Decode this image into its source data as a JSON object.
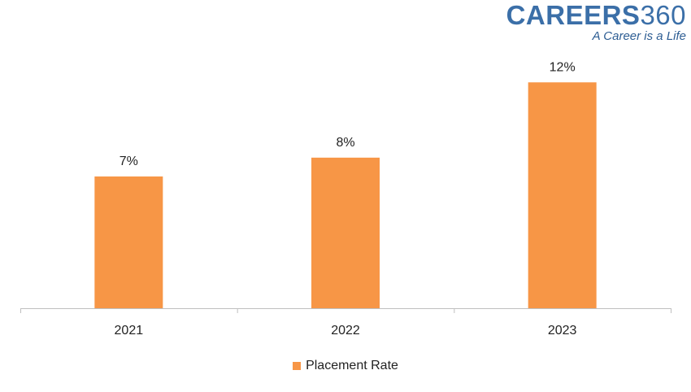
{
  "brand": {
    "name_bold": "CAREERS",
    "name_number": "360",
    "tagline": "A Career is a Life"
  },
  "chart_data": {
    "type": "bar",
    "categories": [
      "2021",
      "2022",
      "2023"
    ],
    "series": [
      {
        "name": "Placement Rate",
        "values": [
          7,
          8,
          12
        ],
        "color": "#f79646"
      }
    ],
    "data_labels": [
      "7%",
      "8%",
      "12%"
    ],
    "ylim": [
      0,
      12.4
    ],
    "grid": false,
    "legend_position": "bottom"
  }
}
